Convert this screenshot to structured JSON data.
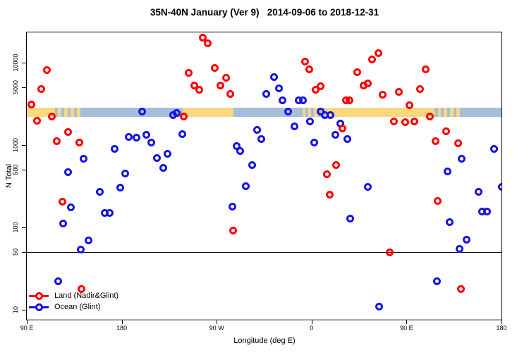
{
  "title": "35N-40N January (Ver 9)   2014-09-06 to 2018-12-31",
  "chart_data": {
    "type": "scatter",
    "title": "35N-40N January (Ver 9)   2014-09-06 to 2018-12-31",
    "xlabel": "Longitude (deg E)",
    "ylabel": "N Total",
    "x_axis": {
      "note": "longitude axis spans 450 degrees, wrapping from 90E eastward to 180",
      "range": [
        90,
        540
      ],
      "ticks": [
        {
          "lon": 90,
          "label": "90 E"
        },
        {
          "lon": 180,
          "label": "180"
        },
        {
          "lon": 270,
          "label": "90 W"
        },
        {
          "lon": 360,
          "label": "0"
        },
        {
          "lon": 450,
          "label": "90 E"
        },
        {
          "lon": 540,
          "label": "180"
        }
      ]
    },
    "y_axis": {
      "scale": "log10",
      "range": [
        7.6,
        23000
      ],
      "ticks": [
        {
          "value": 10000,
          "label": "10000"
        },
        {
          "value": 5000,
          "label": "5000"
        },
        {
          "value": 1000,
          "label": "1000"
        },
        {
          "value": 500,
          "label": "500"
        },
        {
          "value": 100,
          "label": "100"
        },
        {
          "value": 50,
          "label": "50"
        },
        {
          "value": 10,
          "label": "10"
        }
      ]
    },
    "reference_line_y": 50,
    "map_band": {
      "description": "land/ocean strip for the 35N-40N latitude belt drawn across the plot",
      "n_range": [
        2200,
        2840
      ],
      "land_color": "#FBD77E",
      "ocean_color": "#A8BDDB",
      "segments": [
        {
          "from": 90,
          "to": 116.5,
          "type": "land"
        },
        {
          "from": 116.5,
          "to": 119.5,
          "type": "ocean"
        },
        {
          "from": 119.5,
          "to": 122.5,
          "type": "land"
        },
        {
          "from": 122.5,
          "to": 125.5,
          "type": "ocean"
        },
        {
          "from": 125.5,
          "to": 128.5,
          "type": "land"
        },
        {
          "from": 128.5,
          "to": 131.5,
          "type": "ocean"
        },
        {
          "from": 131.5,
          "to": 134.5,
          "type": "land"
        },
        {
          "from": 134.5,
          "to": 137.5,
          "type": "ocean"
        },
        {
          "from": 137.5,
          "to": 140.5,
          "type": "land"
        },
        {
          "from": 140.5,
          "to": 237.8,
          "type": "ocean"
        },
        {
          "from": 237.8,
          "to": 285.9,
          "type": "land"
        },
        {
          "from": 285.9,
          "to": 351.4,
          "type": "ocean"
        },
        {
          "from": 351.4,
          "to": 354,
          "type": "land"
        },
        {
          "from": 354,
          "to": 356.5,
          "type": "ocean"
        },
        {
          "from": 356.5,
          "to": 359.5,
          "type": "land"
        },
        {
          "from": 359.5,
          "to": 362,
          "type": "ocean"
        },
        {
          "from": 362,
          "to": 366,
          "type": "land"
        },
        {
          "from": 366,
          "to": 368.5,
          "type": "ocean"
        },
        {
          "from": 368.5,
          "to": 371,
          "type": "land"
        },
        {
          "from": 371,
          "to": 373,
          "type": "ocean"
        },
        {
          "from": 373,
          "to": 476.5,
          "type": "land"
        },
        {
          "from": 476.5,
          "to": 479.5,
          "type": "ocean"
        },
        {
          "from": 479.5,
          "to": 482.5,
          "type": "land"
        },
        {
          "from": 482.5,
          "to": 485.5,
          "type": "ocean"
        },
        {
          "from": 485.5,
          "to": 488.5,
          "type": "land"
        },
        {
          "from": 488.5,
          "to": 491.5,
          "type": "ocean"
        },
        {
          "from": 491.5,
          "to": 494.5,
          "type": "land"
        },
        {
          "from": 494.5,
          "to": 497.5,
          "type": "ocean"
        },
        {
          "from": 497.5,
          "to": 500.5,
          "type": "land"
        },
        {
          "from": 500.5,
          "to": 540,
          "type": "ocean"
        }
      ]
    },
    "legend": {
      "position": "bottom-left",
      "entries": [
        {
          "label": "Land (Nadir&Glint)",
          "color": "#FF0000"
        },
        {
          "label": "Ocean (Glint)",
          "color": "#1414E6"
        }
      ]
    },
    "series": [
      {
        "name": "Land (Nadir&Glint)",
        "color": "#FF0000",
        "points": [
          [
            109.2,
            8200
          ],
          [
            104.0,
            4800
          ],
          [
            94.2,
            3100
          ],
          [
            99.6,
            1960
          ],
          [
            113.6,
            2200
          ],
          [
            129.0,
            1450
          ],
          [
            118.7,
            1120
          ],
          [
            139.9,
            1070
          ],
          [
            123.6,
            205
          ],
          [
            142.1,
            18
          ],
          [
            257.0,
            20000
          ],
          [
            261.8,
            17300
          ],
          [
            268.1,
            8700
          ],
          [
            243.6,
            7500
          ],
          [
            278.8,
            6600
          ],
          [
            249.1,
            5300
          ],
          [
            253.6,
            4650
          ],
          [
            273.7,
            5300
          ],
          [
            282.6,
            4150
          ],
          [
            239.1,
            2200
          ],
          [
            285.9,
            91
          ],
          [
            353.9,
            10300
          ],
          [
            357.9,
            8300
          ],
          [
            364.0,
            4650
          ],
          [
            368.4,
            5150
          ],
          [
            403.0,
            7650
          ],
          [
            417.5,
            11000
          ],
          [
            423.0,
            13000
          ],
          [
            409.6,
            5300
          ],
          [
            413.0,
            5550
          ],
          [
            392.4,
            3480
          ],
          [
            396.2,
            3480
          ],
          [
            427.4,
            4100
          ],
          [
            443.0,
            4380
          ],
          [
            389.1,
            1580
          ],
          [
            382.9,
            570
          ],
          [
            374.4,
            440
          ],
          [
            377.3,
            250
          ],
          [
            434.1,
            50
          ],
          [
            438.2,
            1950
          ],
          [
            448.5,
            1890
          ],
          [
            453.0,
            3070
          ],
          [
            457.5,
            1950
          ],
          [
            462.6,
            4820
          ],
          [
            468.0,
            8270
          ],
          [
            471.9,
            2240
          ],
          [
            477.5,
            1120
          ],
          [
            487.5,
            1460
          ],
          [
            498.6,
            1050
          ],
          [
            479.7,
            210
          ],
          [
            501.3,
            18
          ]
        ]
      },
      {
        "name": "Ocean (Glint)",
        "color": "#1414E6",
        "points": [
          [
            199.5,
            2540
          ],
          [
            186.8,
            1250
          ],
          [
            193.9,
            1240
          ],
          [
            203.5,
            1340
          ],
          [
            207.9,
            1070
          ],
          [
            173.4,
            905
          ],
          [
            143.7,
            675
          ],
          [
            129.2,
            470
          ],
          [
            183.4,
            450
          ],
          [
            159.3,
            270
          ],
          [
            178.9,
            306
          ],
          [
            132.1,
            175
          ],
          [
            163.8,
            151
          ],
          [
            168.9,
            151
          ],
          [
            124.3,
            111
          ],
          [
            148.2,
            70
          ],
          [
            141.0,
            54
          ],
          [
            119.9,
            22
          ],
          [
            228.6,
            2330
          ],
          [
            232.4,
            2430
          ],
          [
            237.3,
            1350
          ],
          [
            213.5,
            700
          ],
          [
            223.5,
            780
          ],
          [
            219.1,
            525
          ],
          [
            288.8,
            980
          ],
          [
            292.6,
            850
          ],
          [
            308.2,
            1530
          ],
          [
            312.6,
            1180
          ],
          [
            303.8,
            573
          ],
          [
            297.7,
            317
          ],
          [
            284.8,
            180
          ],
          [
            317.1,
            4150
          ],
          [
            324.5,
            6650
          ],
          [
            328.9,
            4900
          ],
          [
            332.7,
            3480
          ],
          [
            347.9,
            3500
          ],
          [
            351.6,
            3500
          ],
          [
            337.9,
            2540
          ],
          [
            343.9,
            1690
          ],
          [
            358.3,
            1950
          ],
          [
            368.4,
            2540
          ],
          [
            372.2,
            2330
          ],
          [
            378.0,
            2290
          ],
          [
            362.8,
            1070
          ],
          [
            382.4,
            1330
          ],
          [
            387.3,
            1820
          ],
          [
            393.6,
            1180
          ],
          [
            413.0,
            310
          ],
          [
            396.9,
            127
          ],
          [
            424.1,
            11
          ],
          [
            533.3,
            895
          ],
          [
            502.0,
            680
          ],
          [
            488.6,
            475
          ],
          [
            540.0,
            310
          ],
          [
            518.4,
            272
          ],
          [
            521.5,
            156
          ],
          [
            526.0,
            156
          ],
          [
            490.9,
            115
          ],
          [
            507.1,
            71
          ],
          [
            500.4,
            55
          ],
          [
            479.1,
            22
          ]
        ]
      }
    ]
  }
}
